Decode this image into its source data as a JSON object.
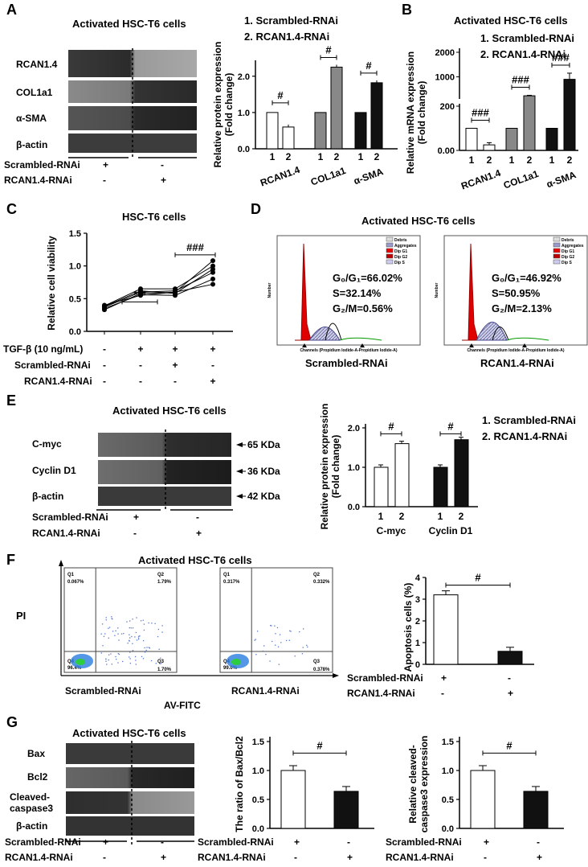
{
  "panels": {
    "A": "A",
    "B": "B",
    "C": "C",
    "D": "D",
    "E": "E",
    "F": "F",
    "G": "G"
  },
  "common": {
    "cells": "Activated HSC-T6 cells",
    "scr": "Scrambled-RNAi",
    "rcan": "RCAN1.4-RNAi",
    "leg1": "1. Scrambled-RNAi",
    "leg2": "2. RCAN1.4-RNAi",
    "plus": "+",
    "minus": "-"
  },
  "A": {
    "blots": [
      "RCAN1.4",
      "COL1a1",
      "α-SMA",
      "β-actin"
    ],
    "chart_data": {
      "type": "bar",
      "groups": [
        "RCAN1.4",
        "COL1a1",
        "α-SMA"
      ],
      "bars": [
        "1",
        "2"
      ],
      "values": [
        [
          1.0,
          0.6
        ],
        [
          1.0,
          2.25
        ],
        [
          1.0,
          1.82
        ]
      ],
      "ylabel": "Relative protein expression\n(Fold change)",
      "ylim": [
        0,
        2.5
      ],
      "yticks": [
        "0.0",
        "1.0",
        "2.0"
      ],
      "sig": "#"
    }
  },
  "B": {
    "chart_data": {
      "type": "bar",
      "groups": [
        "RCAN1.4",
        "COL1a1",
        "α-SMA"
      ],
      "bars": [
        "1",
        "2"
      ],
      "values": [
        [
          100,
          25
        ],
        [
          100,
          230
        ],
        [
          100,
          900
        ]
      ],
      "errors": [
        [
          0,
          10
        ],
        [
          0,
          20
        ],
        [
          0,
          250
        ]
      ],
      "ylabel": "Relative mRNA expression\n(Fold change)",
      "yticks": [
        "0.00",
        "200",
        "1000",
        "2000"
      ],
      "sig": "###",
      "scale": "broken"
    }
  },
  "C": {
    "title": "HSC-T6 cells",
    "chart_data": {
      "type": "line",
      "conditions": [
        "1",
        "2",
        "3",
        "4"
      ],
      "series": [
        {
          "values": [
            0.33,
            0.58,
            0.6,
            0.72
          ]
        },
        {
          "values": [
            0.35,
            0.56,
            0.55,
            0.8
          ]
        },
        {
          "values": [
            0.37,
            0.6,
            0.62,
            0.9
          ]
        },
        {
          "values": [
            0.38,
            0.62,
            0.58,
            0.95
          ]
        },
        {
          "values": [
            0.39,
            0.65,
            0.65,
            1.0
          ]
        },
        {
          "values": [
            0.4,
            0.55,
            0.6,
            1.08
          ]
        }
      ],
      "ylabel": "Relative cell viability",
      "ylim": [
        0,
        1.5
      ],
      "yticks": [
        "0.0",
        "0.5",
        "1.0",
        "1.5"
      ],
      "sig1": "***",
      "sig2": "###"
    },
    "rows": [
      {
        "label": "TGF-β (10 ng/mL)",
        "v": [
          "-",
          "+",
          "+",
          "+"
        ]
      },
      {
        "label": "Scrambled-RNAi",
        "v": [
          "-",
          "-",
          "+",
          "-"
        ]
      },
      {
        "label": "RCAN1.4-RNAi",
        "v": [
          "-",
          "-",
          "-",
          "+"
        ]
      }
    ]
  },
  "D": {
    "scr": {
      "g": "G₀/G₁=66.02%",
      "s": "S=32.14%",
      "m": "G₂/M=0.56%",
      "name": "Scrambled-RNAi"
    },
    "rcan": {
      "g": "G₀/G₁=46.92%",
      "s": "S=50.95%",
      "m": "G₂/M=2.13%",
      "name": "RCAN1.4-RNAi"
    },
    "ylab": "Number",
    "xlab": "Channels (Propidium Iodide-A-Propidium Iodide-A)",
    "legend": [
      "Debris",
      "Aggregates",
      "Dip G1",
      "Dip G2",
      "Dip S"
    ]
  },
  "E": {
    "blots": [
      "C-myc",
      "Cyclin D1",
      "β-actin"
    ],
    "kda": [
      "65 KDa",
      "36 KDa",
      "42 KDa"
    ],
    "chart_data": {
      "type": "bar",
      "groups": [
        "C-myc",
        "Cyclin D1"
      ],
      "bars": [
        "1",
        "2"
      ],
      "values": [
        [
          1.0,
          1.6
        ],
        [
          1.0,
          1.7
        ]
      ],
      "ylabel": "Relative protein expression\n(Fold change)",
      "ylim": [
        0,
        2
      ],
      "yticks": [
        "0.0",
        "1.0",
        "2.0"
      ],
      "sig": "#"
    }
  },
  "F": {
    "scr": {
      "q1": "0.067%",
      "q2": "1.79%",
      "q3": "1.70%",
      "q4": "96.4%"
    },
    "rcan": {
      "q1": "0.317%",
      "q2": "0.332%",
      "q3": "0.378%",
      "q4": "99.0%"
    },
    "ylab": "PI",
    "xlab": "AV-FITC",
    "chart_data": {
      "type": "bar",
      "categories": [
        "Scrambled-RNAi",
        "RCAN1.4-RNAi"
      ],
      "values": [
        3.2,
        0.6
      ],
      "ylabel": "Apoptosis cells (%)",
      "ylim": [
        0,
        4
      ],
      "yticks": [
        "0",
        "1",
        "2",
        "3",
        "4"
      ],
      "sig": "#"
    }
  },
  "G": {
    "blots": [
      "Bax",
      "Bcl2",
      "Cleaved-\ncaspase3",
      "β-actin"
    ],
    "chart1": {
      "type": "bar",
      "values": [
        1.0,
        0.64
      ],
      "ylabel": "The ratio of Bax/Bcl2",
      "ylim": [
        0,
        1.5
      ],
      "yticks": [
        "0.0",
        "0.5",
        "1.0",
        "1.5"
      ],
      "sig": "#"
    },
    "chart2": {
      "type": "bar",
      "values": [
        1.0,
        0.64
      ],
      "ylabel": "Relative cleaved-\ncaspase3 expression",
      "ylim": [
        0,
        1.5
      ],
      "yticks": [
        "0.0",
        "0.5",
        "1.0",
        "1.5"
      ],
      "sig": "#"
    }
  }
}
